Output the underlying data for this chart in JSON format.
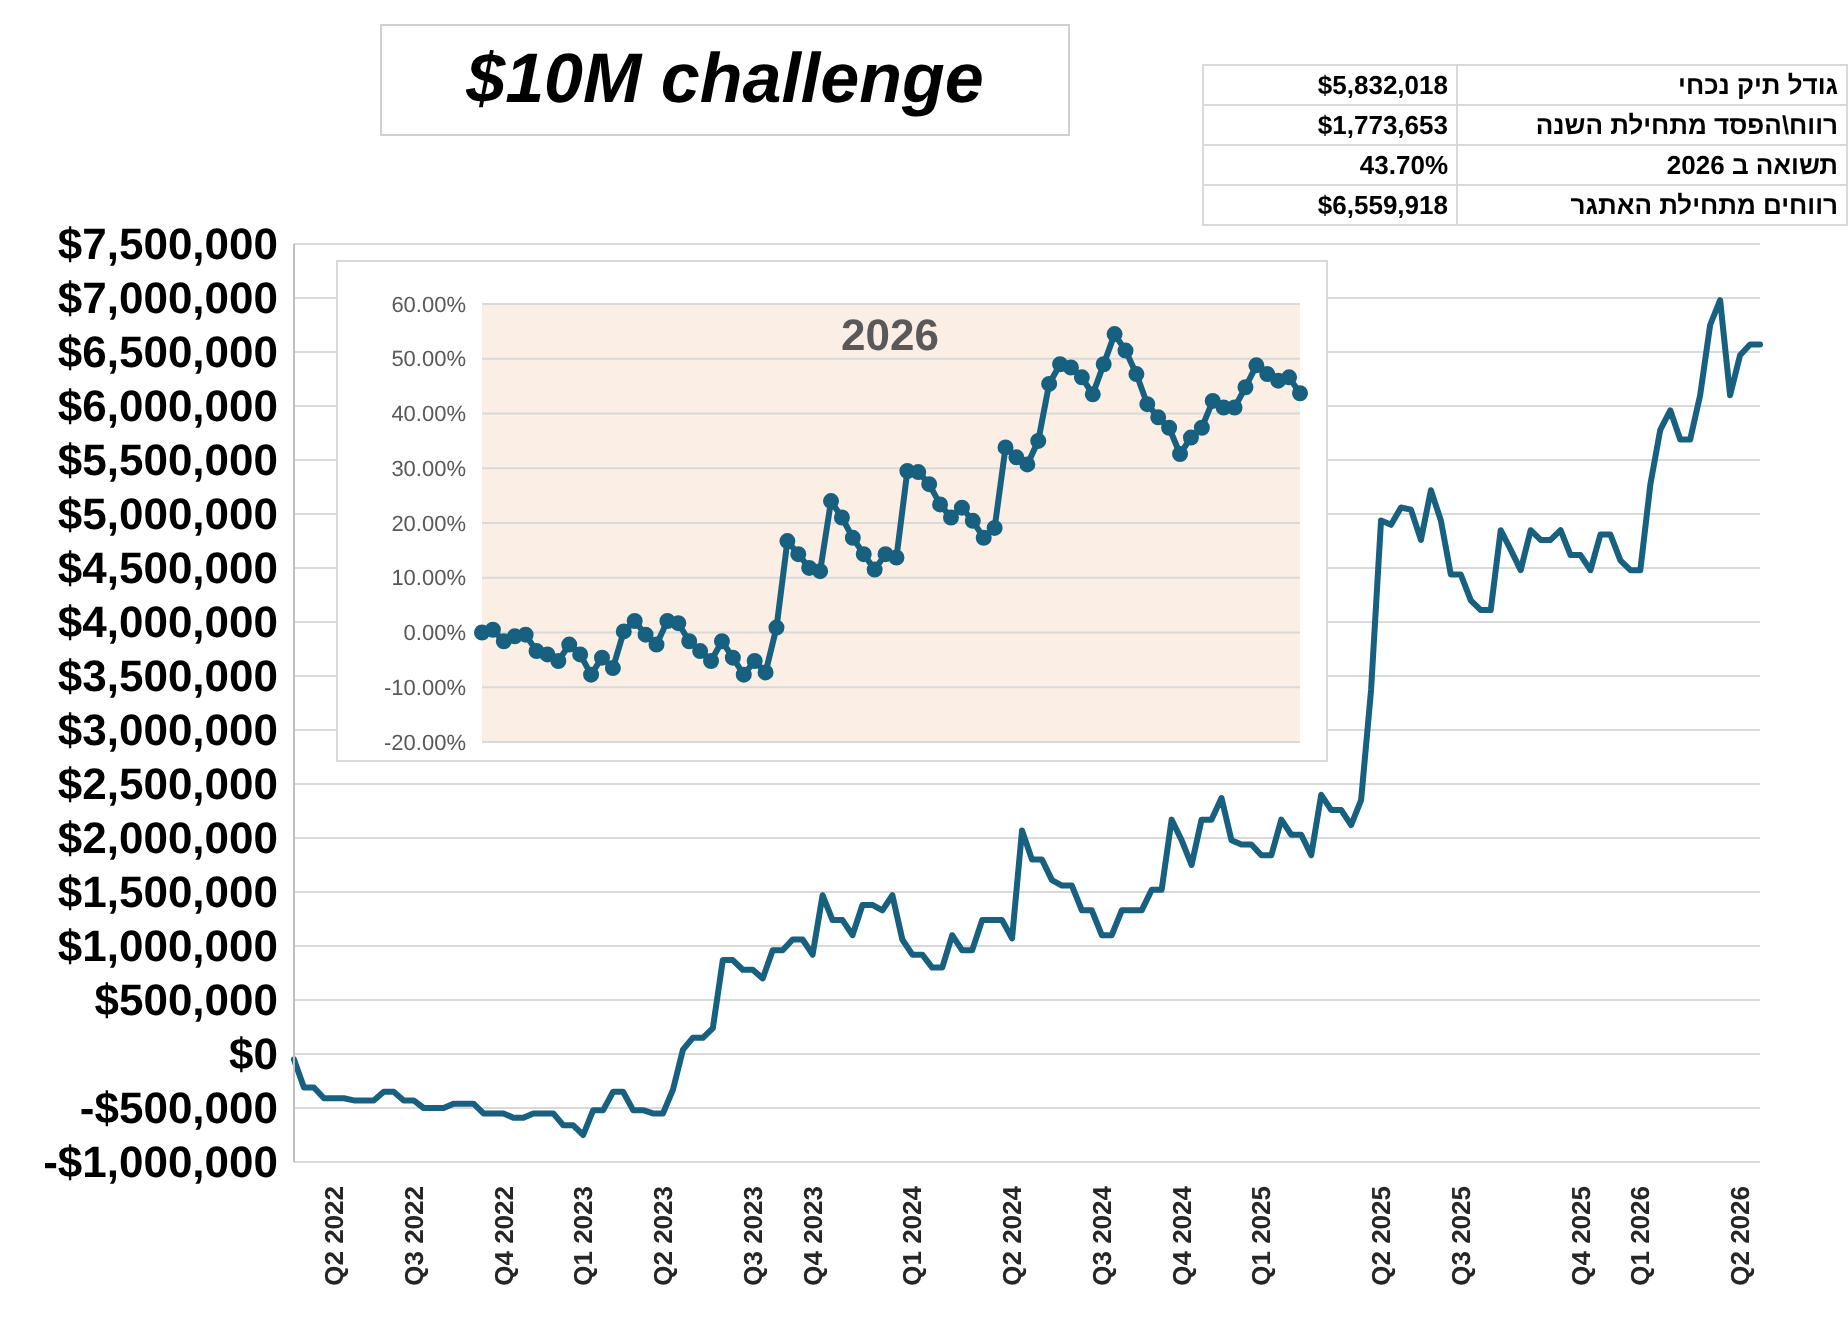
{
  "chart_data": [
    {
      "type": "line",
      "title": "$10M challenge",
      "categories": [
        null,
        null,
        null,
        null,
        "Q2 2022",
        null,
        null,
        null,
        null,
        null,
        null,
        null,
        "Q3 2022",
        null,
        null,
        null,
        null,
        null,
        null,
        null,
        null,
        "Q4 2022",
        null,
        null,
        null,
        null,
        null,
        null,
        null,
        "Q1 2023",
        null,
        null,
        null,
        null,
        null,
        null,
        null,
        "Q2 2023",
        null,
        null,
        null,
        null,
        null,
        null,
        null,
        null,
        "Q3 2023",
        null,
        null,
        null,
        null,
        null,
        "Q4 2023",
        null,
        null,
        null,
        null,
        null,
        null,
        null,
        null,
        null,
        "Q1 2024",
        null,
        null,
        null,
        null,
        null,
        null,
        null,
        null,
        null,
        "Q2 2024",
        null,
        null,
        null,
        null,
        null,
        null,
        null,
        null,
        "Q3 2024",
        null,
        null,
        null,
        null,
        null,
        null,
        null,
        "Q4 2024",
        null,
        null,
        null,
        null,
        null,
        null,
        null,
        "Q1 2025",
        null,
        null,
        null,
        null,
        null,
        null,
        null,
        null,
        null,
        null,
        null,
        "Q2 2025",
        null,
        null,
        null,
        null,
        null,
        null,
        null,
        "Q3 2025",
        null,
        null,
        null,
        null,
        null,
        null,
        null,
        null,
        null,
        null,
        null,
        "Q4 2025",
        null,
        null,
        null,
        null,
        null,
        "Q1 2026",
        null,
        null,
        null,
        null,
        null,
        null,
        null,
        null,
        null,
        "Q2 2026",
        null,
        null
      ],
      "series": [
        {
          "color": "#17607f",
          "values": [
            -50000,
            -310000,
            -310000,
            -410000,
            -410000,
            -410000,
            -430000,
            -430000,
            -430000,
            -350000,
            -350000,
            -430000,
            -430000,
            -500000,
            -500000,
            -500000,
            -460000,
            -460000,
            -460000,
            -550000,
            -550000,
            -550000,
            -590000,
            -590000,
            -550000,
            -550000,
            -550000,
            -660000,
            -660000,
            -750000,
            -520000,
            -520000,
            -350000,
            -350000,
            -520000,
            -520000,
            -550000,
            -550000,
            -330000,
            40000,
            150000,
            150000,
            240000,
            870000,
            870000,
            780000,
            780000,
            700000,
            960000,
            960000,
            1060000,
            1060000,
            920000,
            1470000,
            1240000,
            1240000,
            1100000,
            1380000,
            1380000,
            1330000,
            1470000,
            1060000,
            920000,
            920000,
            800000,
            800000,
            1100000,
            960000,
            960000,
            1240000,
            1240000,
            1240000,
            1070000,
            2070000,
            1800000,
            1800000,
            1610000,
            1560000,
            1560000,
            1330000,
            1330000,
            1100000,
            1100000,
            1330000,
            1330000,
            1330000,
            1520000,
            1520000,
            2170000,
            1980000,
            1750000,
            2170000,
            2170000,
            2370000,
            1980000,
            1940000,
            1940000,
            1840000,
            1840000,
            2170000,
            2030000,
            2030000,
            1840000,
            2400000,
            2260000,
            2260000,
            2120000,
            2350000,
            3370000,
            4940000,
            4900000,
            5060000,
            5040000,
            4760000,
            5220000,
            4940000,
            4440000,
            4440000,
            4200000,
            4110000,
            4110000,
            4850000,
            4670000,
            4480000,
            4850000,
            4760000,
            4760000,
            4850000,
            4620000,
            4620000,
            4480000,
            4810000,
            4810000,
            4570000,
            4480000,
            4480000,
            5270000,
            5780000,
            5960000,
            5690000,
            5690000,
            6100000,
            6750000,
            6980000,
            6100000,
            6470000,
            6570000,
            6570000
          ]
        }
      ],
      "ylim": [
        -1000000,
        7500000
      ],
      "yticks": [
        {
          "value": -1000000,
          "label": "-$1,000,000"
        },
        {
          "value": -500000,
          "label": "-$500,000"
        },
        {
          "value": 0,
          "label": "$0"
        },
        {
          "value": 500000,
          "label": "$500,000"
        },
        {
          "value": 1000000,
          "label": "$1,000,000"
        },
        {
          "value": 1500000,
          "label": "$1,500,000"
        },
        {
          "value": 2000000,
          "label": "$2,000,000"
        },
        {
          "value": 2500000,
          "label": "$2,500,000"
        },
        {
          "value": 3000000,
          "label": "$3,000,000"
        },
        {
          "value": 3500000,
          "label": "$3,500,000"
        },
        {
          "value": 4000000,
          "label": "$4,000,000"
        },
        {
          "value": 4500000,
          "label": "$4,500,000"
        },
        {
          "value": 5000000,
          "label": "$5,000,000"
        },
        {
          "value": 5500000,
          "label": "$5,500,000"
        },
        {
          "value": 6000000,
          "label": "$6,000,000"
        },
        {
          "value": 6500000,
          "label": "$6,500,000"
        },
        {
          "value": 7000000,
          "label": "$7,000,000"
        },
        {
          "value": 7500000,
          "label": "$7,500,000"
        }
      ],
      "grid": "y"
    },
    {
      "type": "line",
      "title": "2026",
      "categories": [
        null,
        null,
        null,
        null,
        null,
        null,
        null,
        null,
        null,
        null,
        null,
        null,
        null,
        null,
        null,
        null,
        null,
        null,
        null,
        null,
        null,
        null,
        null,
        null,
        null,
        null,
        null,
        null,
        null,
        null,
        null,
        null,
        null,
        null,
        null,
        null,
        null,
        null,
        null,
        null,
        null,
        null,
        null,
        null,
        null,
        null,
        null,
        null,
        null,
        null,
        null,
        null,
        null,
        null,
        null,
        null,
        null,
        null,
        null,
        null,
        null,
        null,
        null,
        null,
        null,
        null,
        null,
        null,
        null,
        null,
        null,
        null,
        null,
        null,
        null,
        null
      ],
      "series": [
        {
          "color": "#17607f",
          "values": [
            0,
            0.5,
            -1.6,
            -0.7,
            -0.4,
            -3.4,
            -4,
            -5.2,
            -2.2,
            -4,
            -7.7,
            -4.6,
            -6.5,
            0.2,
            2.1,
            -0.4,
            -2.2,
            2.1,
            1.7,
            -1.6,
            -3.4,
            -5.2,
            -1.6,
            -4.6,
            -7.7,
            -5.2,
            -7.3,
            0.9,
            16.7,
            14.3,
            11.8,
            11.2,
            24,
            21,
            17.3,
            14.3,
            11.5,
            14.3,
            13.7,
            29.5,
            29.3,
            27.1,
            23.4,
            21,
            22.8,
            20.4,
            17.3,
            19.1,
            33.8,
            32,
            30.7,
            35,
            45.4,
            49,
            48.4,
            46.6,
            43.5,
            49,
            54.5,
            51.5,
            47.2,
            41.7,
            39.3,
            37.4,
            32.6,
            35.6,
            37.4,
            42.3,
            41.1,
            41.1,
            44.8,
            48.8,
            47.2,
            46,
            46.6,
            43.7
          ]
        }
      ],
      "ylim": [
        -20,
        60
      ],
      "yticks": [
        {
          "value": -20,
          "label": "-20.00%"
        },
        {
          "value": -10,
          "label": "-10.00%"
        },
        {
          "value": 0,
          "label": "0.00%"
        },
        {
          "value": 10,
          "label": "10.00%"
        },
        {
          "value": 20,
          "label": "20.00%"
        },
        {
          "value": 30,
          "label": "30.00%"
        },
        {
          "value": 40,
          "label": "40.00%"
        },
        {
          "value": 50,
          "label": "50.00%"
        },
        {
          "value": 60,
          "label": "60.00%"
        }
      ],
      "grid": "y",
      "marker": "circle",
      "tick_labels": "y"
    },
    {
      "type": "other",
      "categories": [
        "גודל תיק נכחי",
        "רווח\\הפסד מתחילת השנה",
        "תשואה ב 2026",
        "רווחים מתחילת האתגר"
      ],
      "value_labels": [
        "$5,832,018",
        "$1,773,653",
        "43.70%",
        "$6,559,918"
      ]
    }
  ]
}
